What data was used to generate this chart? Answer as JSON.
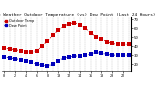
{
  "title": "Milwaukee Weather Outdoor Temperature (vs) Dew Point (Last 24 Hours)",
  "temp_values": [
    38,
    37,
    36,
    35,
    34,
    33,
    35,
    40,
    46,
    52,
    58,
    62,
    65,
    66,
    64,
    60,
    55,
    50,
    48,
    45,
    43,
    42,
    42,
    42
  ],
  "dew_values": [
    28,
    27,
    26,
    25,
    24,
    22,
    20,
    19,
    18,
    20,
    24,
    27,
    28,
    29,
    29,
    30,
    31,
    33,
    32,
    31,
    30,
    30,
    30,
    30
  ],
  "temp_color": "#cc0000",
  "dew_color": "#0000bb",
  "ylim": [
    12,
    72
  ],
  "ytick_vals": [
    20,
    30,
    40,
    50,
    60,
    70
  ],
  "ytick_labels": [
    "20",
    "30",
    "40",
    "50",
    "60",
    "70"
  ],
  "n_points": 24,
  "bg_color": "#ffffff",
  "grid_color": "#999999",
  "title_fontsize": 3.2,
  "tick_fontsize": 2.8,
  "legend_fontsize": 2.5,
  "marker_size": 2.5,
  "line_width": 0.7,
  "legend_labels": [
    "Outdoor Temp",
    "Dew Point"
  ],
  "legend_colors": [
    "#cc0000",
    "#0000bb"
  ]
}
